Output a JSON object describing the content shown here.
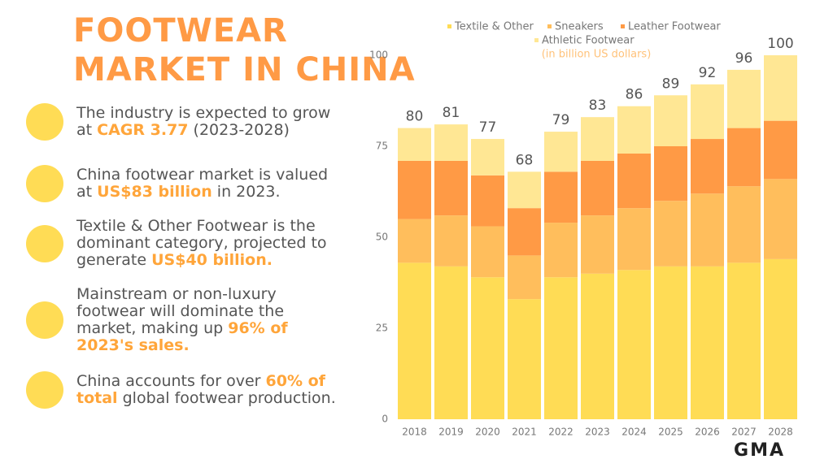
{
  "header": {
    "title_lines": [
      "FOOTWEAR",
      "MARKET IN CHINA"
    ]
  },
  "bullets": [
    [
      {
        "text": "The industry is expected to grow at "
      },
      {
        "text": "CAGR 3.77",
        "highlight": true
      },
      {
        "text": " (2023-2028)"
      }
    ],
    [
      {
        "text": "China footwear market is valued at "
      },
      {
        "text": "US$83 billion",
        "highlight": true
      },
      {
        "text": " in 2023."
      }
    ],
    [
      {
        "text": "Textile & Other Footwear is the dominant category, projected to generate "
      },
      {
        "text": "US$40 billion.",
        "highlight": true
      }
    ],
    [
      {
        "text": "Mainstream or non-luxury footwear will dominate the market, making up "
      },
      {
        "text": "96% of 2023's sales.",
        "highlight": true
      }
    ],
    [
      {
        "text": "China accounts for over "
      },
      {
        "text": "60% of total",
        "highlight": true
      },
      {
        "text": " global footwear production."
      }
    ]
  ],
  "logo": "GMA",
  "chart_data": {
    "type": "stacked_bar",
    "subtitle": "(in billion US dollars)",
    "categories": [
      "2018",
      "2019",
      "2020",
      "2021",
      "2022",
      "2023",
      "2024",
      "2025",
      "2026",
      "2027",
      "2028"
    ],
    "series": [
      {
        "name": "Textile & Other",
        "color": "#ffdc55",
        "values": [
          43,
          42,
          39,
          33,
          39,
          40,
          41,
          42,
          42,
          43,
          44
        ]
      },
      {
        "name": "Sneakers",
        "color": "#ffbe5c",
        "values": [
          12,
          14,
          14,
          12,
          15,
          16,
          17,
          18,
          20,
          21,
          22
        ]
      },
      {
        "name": "Leather Footwear",
        "color": "#ff9a45",
        "values": [
          16,
          15,
          14,
          13,
          14,
          15,
          15,
          15,
          15,
          16,
          16
        ]
      },
      {
        "name": "Athletic Footwear",
        "color": "#ffe794",
        "values": [
          9,
          10,
          10,
          10,
          11,
          12,
          13,
          14,
          15,
          16,
          18
        ]
      }
    ],
    "totals": [
      80,
      81,
      77,
      68,
      79,
      83,
      86,
      89,
      92,
      96,
      100
    ],
    "ylim": [
      0,
      100
    ],
    "yticks": [
      0,
      25,
      50,
      75,
      100
    ],
    "grid": false
  }
}
